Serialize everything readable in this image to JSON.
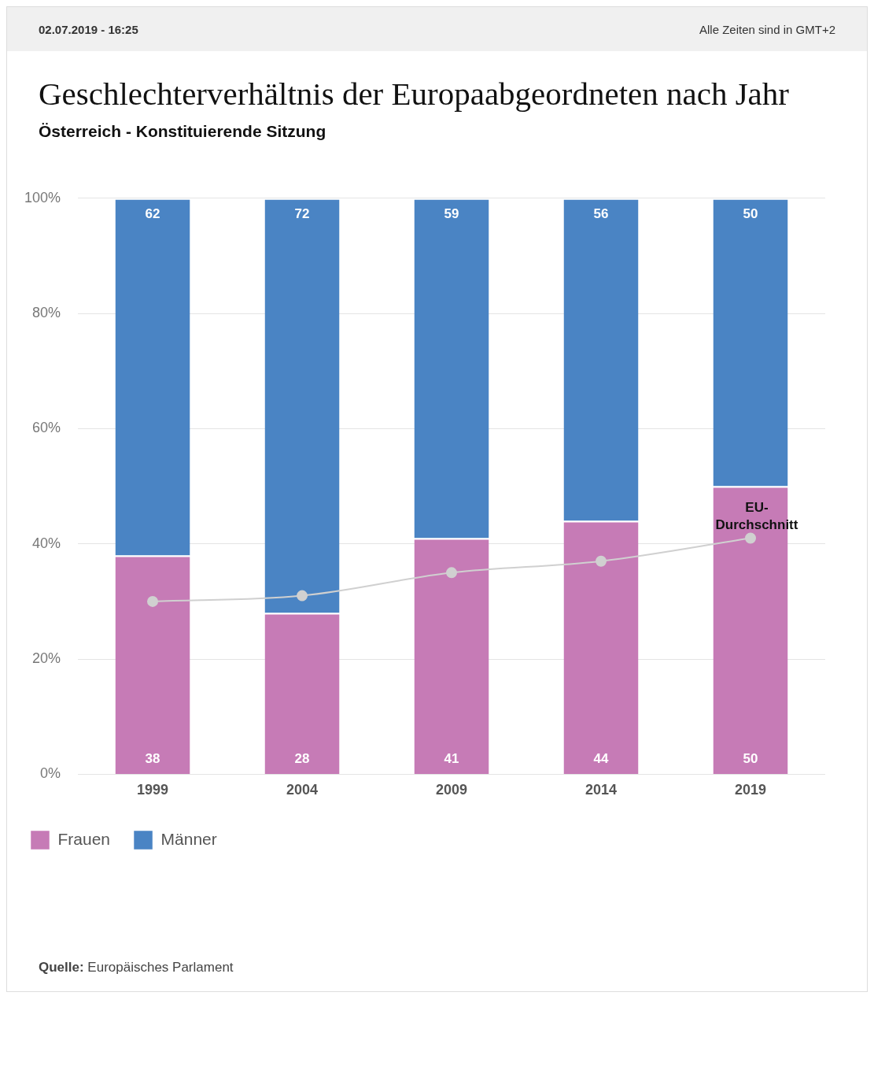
{
  "chart_data": {
    "type": "bar",
    "title": "Geschlechterverhältnis der Europaabgeordneten nach Jahr",
    "subtitle": "Österreich - Konstituierende Sitzung",
    "annotations": [
      "02.07.2019 - 16:25",
      "Alle Zeiten sind in GMT+2",
      "Quelle: Europäisches Parlament"
    ],
    "categories": [
      "1999",
      "2004",
      "2009",
      "2014",
      "2019"
    ],
    "stacked": true,
    "series": [
      {
        "name": "Frauen",
        "color": "#c67bb6",
        "values": [
          38,
          28,
          41,
          44,
          50
        ],
        "value_labels": [
          "38",
          "28",
          "41",
          "44",
          "50"
        ]
      },
      {
        "name": "Männer",
        "color": "#4a84c4",
        "values": [
          62,
          72,
          59,
          56,
          50
        ],
        "value_labels": [
          "62",
          "72",
          "59",
          "56",
          "50"
        ]
      },
      {
        "name": "EU-Durchschnitt",
        "type": "line",
        "color": "#d0d0d0",
        "values": [
          30,
          31,
          35,
          37,
          41
        ],
        "marker": "circle",
        "line_style": "solid"
      }
    ],
    "ylim": [
      0,
      100
    ],
    "yticks": [
      {
        "value": 0,
        "label": "0%"
      },
      {
        "value": 20,
        "label": "20%"
      },
      {
        "value": 40,
        "label": "40%"
      },
      {
        "value": 60,
        "label": "60%"
      },
      {
        "value": 80,
        "label": "80%"
      },
      {
        "value": 100,
        "label": "100%"
      }
    ],
    "grid": "y",
    "legend": "bottom left"
  }
}
